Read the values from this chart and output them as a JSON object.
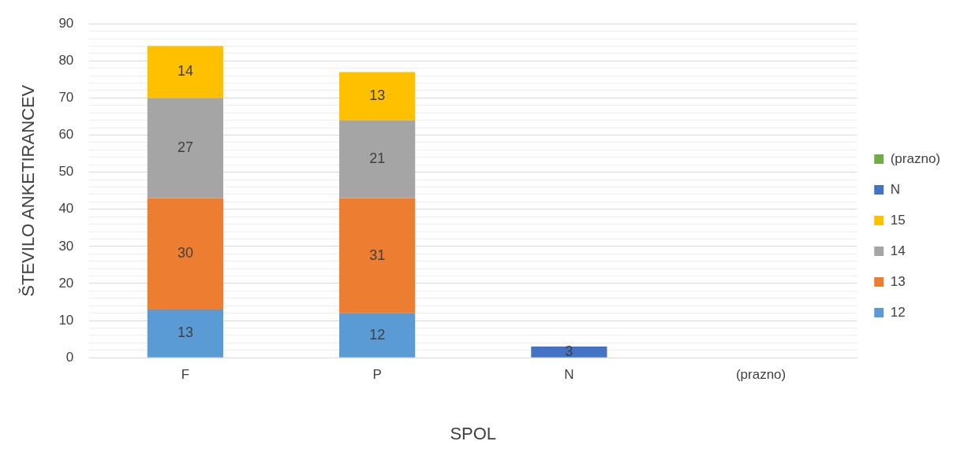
{
  "chart_data": {
    "type": "bar",
    "stacked": true,
    "xlabel": "SPOL",
    "ylabel": "ŠTEVILO ANKETIRANCEV",
    "categories": [
      "F",
      "P",
      "N",
      "(prazno)"
    ],
    "series": [
      {
        "name": "12",
        "color": "#5b9bd5",
        "values": [
          13,
          12,
          null,
          null
        ]
      },
      {
        "name": "13",
        "color": "#ed7d31",
        "values": [
          30,
          31,
          null,
          null
        ]
      },
      {
        "name": "14",
        "color": "#a5a5a5",
        "values": [
          27,
          21,
          null,
          null
        ]
      },
      {
        "name": "15",
        "color": "#ffc000",
        "values": [
          14,
          13,
          null,
          null
        ]
      },
      {
        "name": "N",
        "color": "#4472c4",
        "values": [
          null,
          null,
          3,
          null
        ]
      },
      {
        "name": "(prazno)",
        "color": "#70ad47",
        "values": [
          null,
          null,
          null,
          null
        ]
      }
    ],
    "ylim": [
      0,
      90
    ],
    "yticks": [
      0,
      {
        "value": 2,
        "label": null
      },
      {
        "value": 4,
        "label": null
      },
      {
        "value": 6,
        "label": null
      },
      {
        "value": 8,
        "label": null
      },
      10,
      {
        "value": 12,
        "label": null
      },
      {
        "value": 14,
        "label": null
      },
      {
        "value": 16,
        "label": null
      },
      {
        "value": 18,
        "label": null
      },
      20,
      {
        "value": 22,
        "label": null
      },
      {
        "value": 24,
        "label": null
      },
      {
        "value": 26,
        "label": null
      },
      {
        "value": 28,
        "label": null
      },
      30,
      {
        "value": 32,
        "label": null
      },
      {
        "value": 34,
        "label": null
      },
      {
        "value": 36,
        "label": null
      },
      {
        "value": 38,
        "label": null
      },
      40,
      {
        "value": 42,
        "label": null
      },
      {
        "value": 44,
        "label": null
      },
      {
        "value": 46,
        "label": null
      },
      {
        "value": 48,
        "label": null
      },
      50,
      {
        "value": 52,
        "label": null
      },
      {
        "value": 54,
        "label": null
      },
      {
        "value": 56,
        "label": null
      },
      {
        "value": 58,
        "label": null
      },
      60,
      {
        "value": 62,
        "label": null
      },
      {
        "value": 64,
        "label": null
      },
      {
        "value": 66,
        "label": null
      },
      {
        "value": 68,
        "label": null
      },
      70,
      {
        "value": 72,
        "label": null
      },
      {
        "value": 74,
        "label": null
      },
      {
        "value": 76,
        "label": null
      },
      {
        "value": 78,
        "label": null
      },
      80,
      {
        "value": 82,
        "label": null
      },
      {
        "value": 84,
        "label": null
      },
      {
        "value": 86,
        "label": null
      },
      {
        "value": 88,
        "label": null
      },
      90
    ],
    "grid": "y",
    "legend": "right",
    "data_labels": true
  }
}
